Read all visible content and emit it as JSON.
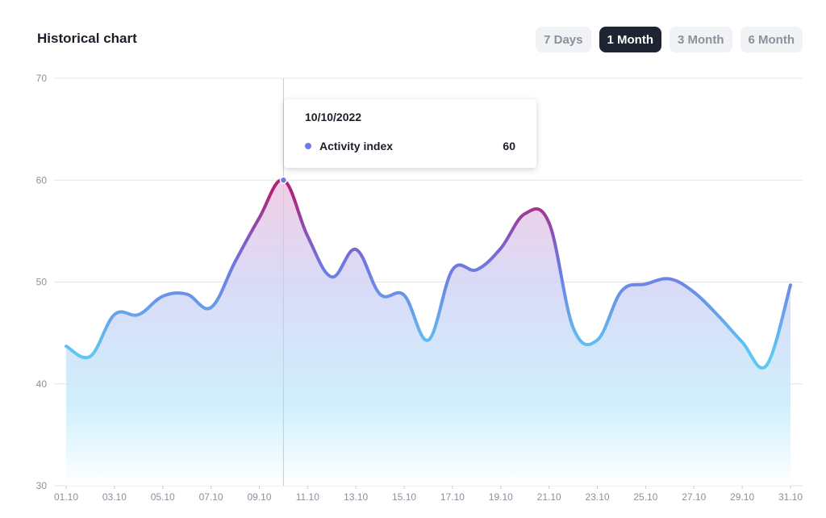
{
  "header": {
    "title": "Historical chart",
    "ranges": [
      {
        "label": "7 Days",
        "active": false
      },
      {
        "label": "1 Month",
        "active": true
      },
      {
        "label": "3 Month",
        "active": false
      },
      {
        "label": "6 Month",
        "active": false
      }
    ]
  },
  "tooltip": {
    "date": "10/10/2022",
    "series_label": "Activity index",
    "value": "60"
  },
  "colors": {
    "line_low": "#5ec8f2",
    "line_mid": "#6f74e0",
    "line_high": "#b0237a",
    "tooltip_dot": "#6b7ce8"
  },
  "chart_data": {
    "type": "area",
    "title": "Historical chart",
    "xlabel": "",
    "ylabel": "",
    "ylim": [
      30,
      70
    ],
    "yticks": [
      30,
      40,
      50,
      60,
      70
    ],
    "grid": true,
    "legend": "none",
    "x_tick_labels": [
      "01.10",
      "03.10",
      "05.10",
      "07.10",
      "09.10",
      "11.10",
      "13.10",
      "15.10",
      "17.10",
      "19.10",
      "21.10",
      "23.10",
      "25.10",
      "27.10",
      "29.10",
      "31.10"
    ],
    "x": [
      "01.10",
      "02.10",
      "03.10",
      "04.10",
      "05.10",
      "06.10",
      "07.10",
      "08.10",
      "09.10",
      "10.10",
      "11.10",
      "12.10",
      "13.10",
      "14.10",
      "15.10",
      "16.10",
      "17.10",
      "18.10",
      "19.10",
      "20.10",
      "21.10",
      "22.10",
      "23.10",
      "24.10",
      "25.10",
      "26.10",
      "27.10",
      "28.10",
      "29.10",
      "30.10",
      "31.10"
    ],
    "series": [
      {
        "name": "Activity index",
        "values": [
          43.7,
          42.7,
          46.8,
          46.8,
          48.6,
          48.8,
          47.5,
          52.0,
          56.3,
          60,
          54.5,
          50.5,
          53.2,
          48.8,
          48.7,
          44.3,
          51.2,
          51.2,
          53.3,
          56.7,
          55.8,
          45.5,
          44.3,
          49.1,
          49.8,
          50.3,
          49.0,
          46.7,
          44.1,
          41.8,
          49.7
        ]
      }
    ],
    "highlight": {
      "x": "10.10",
      "value": 60
    }
  }
}
